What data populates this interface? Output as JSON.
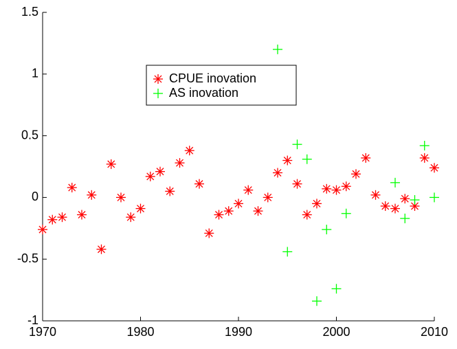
{
  "chart_data": {
    "type": "scatter",
    "xlim": [
      1970,
      2010
    ],
    "xticks": [
      1970,
      1980,
      1990,
      2000,
      2010
    ],
    "ylim": [
      -1,
      1.5
    ],
    "yticks": [
      -1,
      -0.5,
      0,
      0.5,
      1,
      1.5
    ],
    "series": [
      {
        "name": "CPUE inovation",
        "color": "#ff0000",
        "marker": "*",
        "x": [
          1970,
          1971,
          1972,
          1973,
          1974,
          1975,
          1976,
          1977,
          1978,
          1979,
          1980,
          1981,
          1982,
          1983,
          1984,
          1985,
          1986,
          1987,
          1988,
          1989,
          1990,
          1991,
          1992,
          1993,
          1994,
          1995,
          1996,
          1997,
          1998,
          1999,
          2000,
          2001,
          2002,
          2003,
          2004,
          2005,
          2006,
          2007,
          2008,
          2009,
          2010
        ],
        "values": [
          -0.26,
          -0.18,
          -0.16,
          0.08,
          -0.14,
          0.02,
          -0.42,
          0.27,
          0.0,
          -0.16,
          -0.09,
          0.17,
          0.21,
          0.05,
          0.28,
          0.38,
          0.11,
          -0.29,
          -0.14,
          -0.11,
          -0.05,
          0.06,
          -0.11,
          0.0,
          0.2,
          0.3,
          0.11,
          -0.14,
          -0.05,
          0.07,
          0.06,
          0.09,
          0.19,
          0.32,
          0.02,
          -0.07,
          -0.09,
          -0.01,
          -0.07,
          0.32,
          0.24
        ]
      },
      {
        "name": "AS inovation",
        "color": "#00ff00",
        "marker": "+",
        "x": [
          1994,
          1995,
          1996,
          1997,
          1998,
          1999,
          2000,
          2001,
          2006,
          2007,
          2008,
          2009,
          2010
        ],
        "values": [
          1.2,
          -0.44,
          0.43,
          0.31,
          -0.84,
          -0.26,
          -0.74,
          -0.13,
          0.12,
          -0.17,
          -0.02,
          0.42,
          0.0
        ]
      }
    ]
  }
}
